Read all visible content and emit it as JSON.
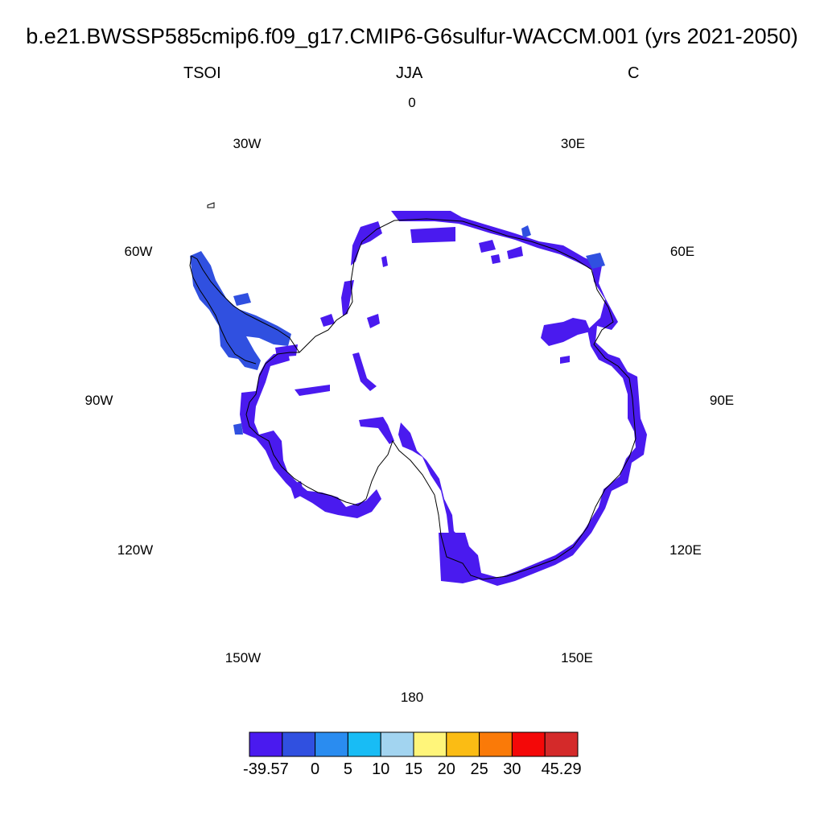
{
  "title": "b.e21.BWSSP585cmip6.f09_g17.CMIP6-G6sulfur-WACCM.001 (yrs 2021-2050)",
  "left_label": "TSOI",
  "center_label": "JJA",
  "right_label": "C",
  "longitude_labels": [
    "0",
    "30E",
    "60E",
    "90E",
    "120E",
    "150E",
    "180",
    "150W",
    "120W",
    "90W",
    "60W",
    "30W"
  ],
  "colorbar": {
    "colors": [
      "#4a1aef",
      "#3050e0",
      "#2a8cf0",
      "#18bcf5",
      "#a2d4f0",
      "#fff57a",
      "#fbbc14",
      "#fa7a08",
      "#f40808",
      "#d42a2a"
    ],
    "labels": [
      "-39.57",
      "0",
      "5",
      "10",
      "15",
      "20",
      "25",
      "30",
      "45.29"
    ]
  },
  "field_colors": {
    "dominant": "#4a1aef",
    "peninsula": "#3050e0",
    "coast": "#000000"
  }
}
